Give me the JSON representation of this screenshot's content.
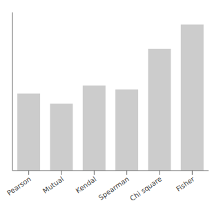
{
  "chart_data": {
    "type": "bar",
    "categories": [
      "Pearson",
      "Mutual",
      "Kendal",
      "Spearman",
      "Chi square",
      "Fisher"
    ],
    "values": [
      0.38,
      0.33,
      0.42,
      0.4,
      0.6,
      0.72
    ],
    "color": "#cccccc",
    "ylim": [
      0,
      0.78
    ],
    "yticks": [],
    "grid": false,
    "tick_labels": "x"
  }
}
